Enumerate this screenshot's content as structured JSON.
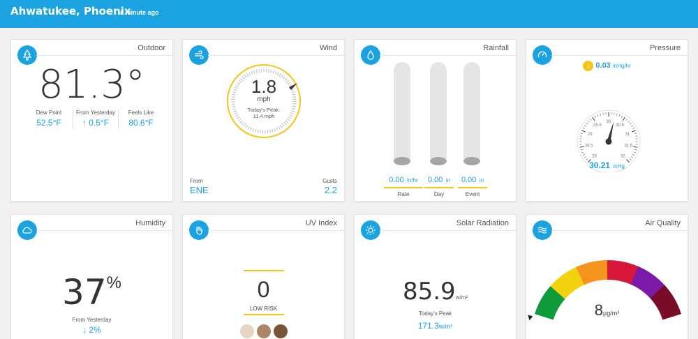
{
  "header": {
    "location": "Ahwatukee, Phoenix",
    "updated": "a minute ago"
  },
  "colors": {
    "accent": "#1aa3e0",
    "gold": "#f5c518"
  },
  "outdoor": {
    "title": "Outdoor",
    "icon": "tree-icon",
    "temp": "81.3°",
    "dew_label": "Dew Point",
    "dew_value": "52.5°F",
    "yesterday_label": "From Yesterday",
    "yesterday_arrow": "↑",
    "yesterday_value": "0.5°F",
    "feels_label": "Feels Like",
    "feels_value": "80.6°F"
  },
  "wind": {
    "title": "Wind",
    "icon": "wind-icon",
    "speed": "1.8",
    "unit": "mph",
    "peak_label": "Today's Peak:",
    "peak_value": "11.4 mph",
    "from_label": "From",
    "from_value": "ENE",
    "gusts_label": "Gusts",
    "gusts_value": "2.2"
  },
  "rainfall": {
    "title": "Rainfall",
    "icon": "raindrop-icon",
    "items": [
      {
        "value": "0.00",
        "unit": "in/hr",
        "label": "Rate"
      },
      {
        "value": "0.00",
        "unit": "in",
        "label": "Day"
      },
      {
        "value": "0.00",
        "unit": "in",
        "label": "Event"
      }
    ]
  },
  "pressure": {
    "title": "Pressure",
    "icon": "gauge-icon",
    "trend_arrow": "↓",
    "trend_value": "0.03",
    "trend_unit": "inHg/hr",
    "value": "30.21",
    "unit": "inHg",
    "ticks": [
      "28",
      "28.5",
      "29",
      "29.5",
      "30",
      "30.5",
      "31",
      "31.5",
      "32"
    ],
    "reading": 30.21
  },
  "humidity": {
    "title": "Humidity",
    "icon": "cloud-icon",
    "value": "37",
    "unit": "%",
    "yesterday_label": "From Yesterday",
    "yesterday_arrow": "↓",
    "yesterday_value": "2%"
  },
  "uv": {
    "title": "UV Index",
    "icon": "hand-icon",
    "value": "0",
    "risk": "LOW RISK"
  },
  "solar": {
    "title": "Solar Radiation",
    "icon": "sun-icon",
    "value": "85.9",
    "unit": "w/m²",
    "peak_label": "Today's Peak",
    "peak_value": "171.3",
    "peak_unit": "w/m²"
  },
  "air": {
    "title": "Air Quality",
    "icon": "waves-icon",
    "value": "8",
    "unit": "µg/m³",
    "segments": [
      "#0f9a3c",
      "#f2d30e",
      "#f5931f",
      "#d6173a",
      "#7b1aa8",
      "#7a0c2a"
    ]
  }
}
